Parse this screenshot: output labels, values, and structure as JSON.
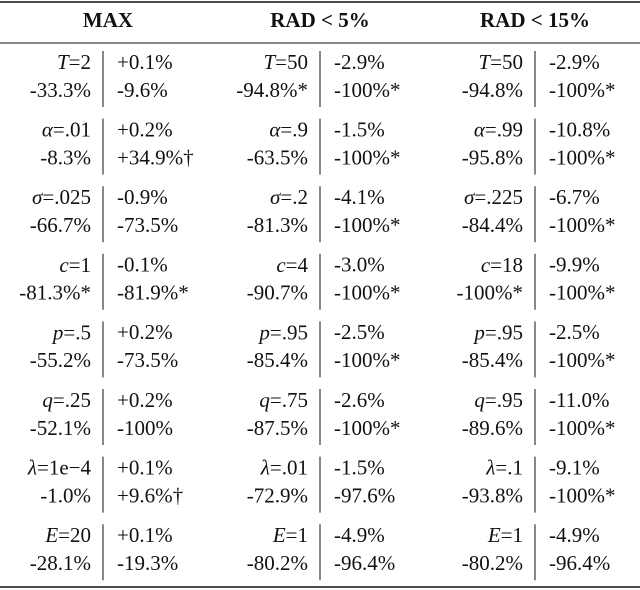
{
  "table": {
    "headers": [
      "MAX",
      "RAD < 5%",
      "RAD < 15%"
    ],
    "rows": [
      [
        [
          [
            "T",
            "=2"
          ],
          "+0.1%",
          "-33.3%",
          "-9.6%"
        ],
        [
          [
            "T",
            "=50"
          ],
          "-2.9%",
          "-94.8%*",
          "-100%*"
        ],
        [
          [
            "T",
            "=50"
          ],
          "-2.9%",
          "-94.8%",
          "-100%*"
        ]
      ],
      [
        [
          [
            "α",
            "=.01"
          ],
          "+0.2%",
          "-8.3%",
          "+34.9%†"
        ],
        [
          [
            "α",
            "=.9"
          ],
          "-1.5%",
          "-63.5%",
          "-100%*"
        ],
        [
          [
            "α",
            "=.99"
          ],
          "-10.8%",
          "-95.8%",
          "-100%*"
        ]
      ],
      [
        [
          [
            "σ",
            "=.025"
          ],
          "-0.9%",
          "-66.7%",
          "-73.5%"
        ],
        [
          [
            "σ",
            "=.2"
          ],
          "-4.1%",
          "-81.3%",
          "-100%*"
        ],
        [
          [
            "σ",
            "=.225"
          ],
          "-6.7%",
          "-84.4%",
          "-100%*"
        ]
      ],
      [
        [
          [
            "c",
            "=1"
          ],
          "-0.1%",
          "-81.3%*",
          "-81.9%*"
        ],
        [
          [
            "c",
            "=4"
          ],
          "-3.0%",
          "-90.7%",
          "-100%*"
        ],
        [
          [
            "c",
            "=18"
          ],
          "-9.9%",
          "-100%*",
          "-100%*"
        ]
      ],
      [
        [
          [
            "p",
            "=.5"
          ],
          "+0.2%",
          "-55.2%",
          "-73.5%"
        ],
        [
          [
            "p",
            "=.95"
          ],
          "-2.5%",
          "-85.4%",
          "-100%*"
        ],
        [
          [
            "p",
            "=.95"
          ],
          "-2.5%",
          "-85.4%",
          "-100%*"
        ]
      ],
      [
        [
          [
            "q",
            "=.25"
          ],
          "+0.2%",
          "-52.1%",
          "-100%"
        ],
        [
          [
            "q",
            "=.75"
          ],
          "-2.6%",
          "-87.5%",
          "-100%*"
        ],
        [
          [
            "q",
            "=.95"
          ],
          "-11.0%",
          "-89.6%",
          "-100%*"
        ]
      ],
      [
        [
          [
            "λ",
            "=1e−4"
          ],
          "+0.1%",
          "-1.0%",
          "+9.6%†"
        ],
        [
          [
            "λ",
            "=.01"
          ],
          "-1.5%",
          "-72.9%",
          "-97.6%"
        ],
        [
          [
            "λ",
            "=.1"
          ],
          "-9.1%",
          "-93.8%",
          "-100%*"
        ]
      ],
      [
        [
          [
            "E",
            "=20"
          ],
          "+0.1%",
          "-28.1%",
          "-19.3%"
        ],
        [
          [
            "E",
            "=1"
          ],
          "-4.9%",
          "-80.2%",
          "-96.4%"
        ],
        [
          [
            "E",
            "=1"
          ],
          "-4.9%",
          "-80.2%",
          "-96.4%"
        ]
      ]
    ]
  }
}
